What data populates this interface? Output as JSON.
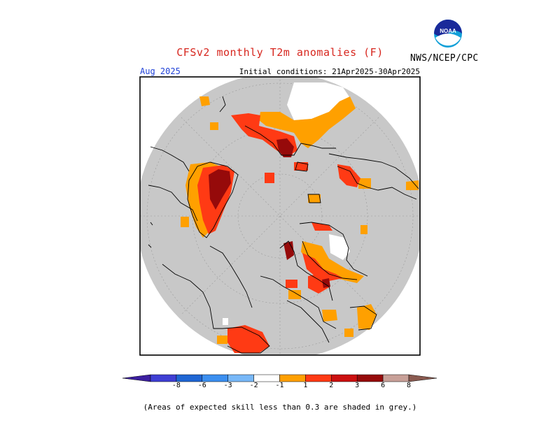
{
  "header": {
    "title": "CFSv2 monthly T2m anomalies (F)",
    "organization": "NWS/NCEP/CPC",
    "month": "Aug 2025",
    "initial_conditions": "Initial conditions: 21Apr2025-30Apr2025"
  },
  "logo": {
    "text": "NOAA",
    "icon": "noaa-logo-icon"
  },
  "legend": {
    "tick_labels": [
      "-8",
      "-6",
      "-3",
      "-2",
      "-1",
      "1",
      "2",
      "3",
      "6",
      "8"
    ],
    "colors": [
      "#3c1fa0",
      "#3f3fd4",
      "#1f66d4",
      "#3b8ff0",
      "#78b8f8",
      "#ffffff",
      "#ffa000",
      "#ff3a14",
      "#cc1010",
      "#960a0a",
      "#c8a098",
      "#8a5a50"
    ]
  },
  "map_colors": {
    "no_skill_grey": "#c8c8c8",
    "neutral_white": "#ffffff"
  },
  "footnote": "(Areas of expected skill less than 0.3 are shaded in grey.)"
}
